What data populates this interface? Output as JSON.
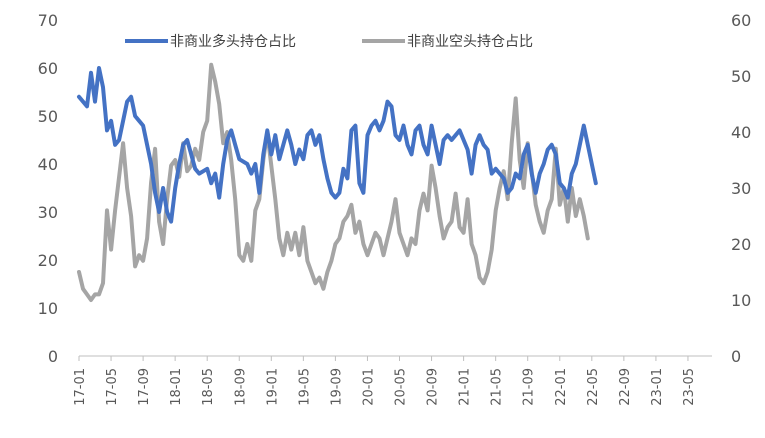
{
  "chart_data": {
    "type": "line",
    "title": "",
    "xlabel": "",
    "ylabel": "",
    "y_left": {
      "min": 0,
      "max": 70,
      "ticks": [
        "0",
        "10",
        "20",
        "30",
        "40",
        "50",
        "60",
        "70"
      ]
    },
    "y_right": {
      "min": 0,
      "max": 60,
      "ticks": [
        "0",
        "10",
        "20",
        "30",
        "40",
        "50",
        "60"
      ]
    },
    "x_ticks": [
      "17-01",
      "17-05",
      "17-09",
      "18-01",
      "18-05",
      "18-09",
      "19-01",
      "19-05",
      "19-09",
      "20-01",
      "20-05",
      "20-09",
      "21-01",
      "21-05",
      "21-09",
      "22-01",
      "22-05",
      "22-09",
      "23-01",
      "23-05"
    ],
    "x_range_months": 79,
    "grid": false,
    "legend_position": "top",
    "series": [
      {
        "name": "非商业多头持仓占比",
        "axis": "left",
        "color": "#4472C4",
        "points": [
          [
            0,
            54
          ],
          [
            1,
            52
          ],
          [
            1.5,
            59
          ],
          [
            2,
            53
          ],
          [
            2.5,
            60
          ],
          [
            3,
            56
          ],
          [
            3.5,
            47
          ],
          [
            4,
            49
          ],
          [
            4.5,
            44
          ],
          [
            5,
            45
          ],
          [
            5.5,
            49
          ],
          [
            6,
            53
          ],
          [
            6.5,
            54
          ],
          [
            7,
            50
          ],
          [
            7.5,
            49
          ],
          [
            8,
            48
          ],
          [
            8.5,
            44
          ],
          [
            9,
            40
          ],
          [
            9.5,
            34
          ],
          [
            10,
            30
          ],
          [
            10.5,
            35
          ],
          [
            11,
            30
          ],
          [
            11.5,
            28
          ],
          [
            12,
            35
          ],
          [
            12.5,
            40
          ],
          [
            13,
            44
          ],
          [
            13.5,
            45
          ],
          [
            14,
            42
          ],
          [
            14.5,
            39
          ],
          [
            15,
            38
          ],
          [
            16,
            39
          ],
          [
            16.5,
            36
          ],
          [
            17,
            38
          ],
          [
            17.5,
            33
          ],
          [
            18,
            40
          ],
          [
            18.5,
            45
          ],
          [
            19,
            47
          ],
          [
            19.5,
            44
          ],
          [
            20,
            41
          ],
          [
            21,
            40
          ],
          [
            21.5,
            38
          ],
          [
            22,
            40
          ],
          [
            22.5,
            34
          ],
          [
            23,
            42
          ],
          [
            23.5,
            47
          ],
          [
            24,
            42
          ],
          [
            24.5,
            46
          ],
          [
            25,
            41
          ],
          [
            25.5,
            44
          ],
          [
            26,
            47
          ],
          [
            26.5,
            44
          ],
          [
            27,
            40
          ],
          [
            27.5,
            43
          ],
          [
            28,
            41
          ],
          [
            28.5,
            46
          ],
          [
            29,
            47
          ],
          [
            29.5,
            44
          ],
          [
            30,
            46
          ],
          [
            30.5,
            41
          ],
          [
            31,
            37
          ],
          [
            31.5,
            34
          ],
          [
            32,
            33
          ],
          [
            32.5,
            34
          ],
          [
            33,
            39
          ],
          [
            33.5,
            37
          ],
          [
            34,
            47
          ],
          [
            34.5,
            48
          ],
          [
            35,
            36
          ],
          [
            35.5,
            34
          ],
          [
            36,
            46
          ],
          [
            36.5,
            48
          ],
          [
            37,
            49
          ],
          [
            37.5,
            47
          ],
          [
            38,
            49
          ],
          [
            38.5,
            53
          ],
          [
            39,
            52
          ],
          [
            39.5,
            46
          ],
          [
            40,
            45
          ],
          [
            40.5,
            48
          ],
          [
            41,
            44
          ],
          [
            41.5,
            42
          ],
          [
            42,
            47
          ],
          [
            42.5,
            48
          ],
          [
            43,
            44
          ],
          [
            43.5,
            42
          ],
          [
            44,
            48
          ],
          [
            44.5,
            44
          ],
          [
            45,
            40
          ],
          [
            45.5,
            45
          ],
          [
            46,
            46
          ],
          [
            46.5,
            45
          ],
          [
            47,
            46
          ],
          [
            47.5,
            47
          ],
          [
            48,
            45
          ],
          [
            48.5,
            43
          ],
          [
            49,
            38
          ],
          [
            49.5,
            44
          ],
          [
            50,
            46
          ],
          [
            50.5,
            44
          ],
          [
            51,
            43
          ],
          [
            51.5,
            38
          ],
          [
            52,
            39
          ],
          [
            52.5,
            38
          ],
          [
            53,
            37
          ],
          [
            53.5,
            34
          ],
          [
            54,
            35
          ],
          [
            54.5,
            38
          ],
          [
            55,
            37
          ],
          [
            55.5,
            42
          ],
          [
            56,
            44
          ],
          [
            56.5,
            38
          ],
          [
            57,
            34
          ],
          [
            57.5,
            38
          ],
          [
            58,
            40
          ],
          [
            58.5,
            43
          ],
          [
            59,
            44
          ],
          [
            59.5,
            42
          ],
          [
            60,
            36
          ],
          [
            60.5,
            35
          ],
          [
            61,
            33
          ],
          [
            61.5,
            38
          ],
          [
            62,
            40
          ],
          [
            62.5,
            44
          ],
          [
            63,
            48
          ],
          [
            63.5,
            44
          ],
          [
            64,
            40
          ],
          [
            64.5,
            36
          ]
        ]
      },
      {
        "name": "非商业空头持仓占比",
        "axis": "right",
        "color": "#A5A5A5",
        "points": [
          [
            0,
            15
          ],
          [
            0.5,
            12
          ],
          [
            1,
            11
          ],
          [
            1.5,
            10
          ],
          [
            2,
            11
          ],
          [
            2.5,
            11
          ],
          [
            3,
            13
          ],
          [
            3.5,
            26
          ],
          [
            4,
            19
          ],
          [
            4.5,
            26
          ],
          [
            5,
            32
          ],
          [
            5.5,
            38
          ],
          [
            6,
            30
          ],
          [
            6.5,
            25
          ],
          [
            7,
            16
          ],
          [
            7.5,
            18
          ],
          [
            8,
            17
          ],
          [
            8.5,
            21
          ],
          [
            9,
            31
          ],
          [
            9.5,
            37
          ],
          [
            10,
            24
          ],
          [
            10.5,
            20
          ],
          [
            11,
            28
          ],
          [
            11.5,
            34
          ],
          [
            12,
            35
          ],
          [
            12.5,
            32
          ],
          [
            13,
            38
          ],
          [
            13.5,
            33
          ],
          [
            14,
            34
          ],
          [
            14.5,
            37
          ],
          [
            15,
            35
          ],
          [
            15.5,
            40
          ],
          [
            16,
            42
          ],
          [
            16.5,
            52
          ],
          [
            17,
            49
          ],
          [
            17.5,
            45
          ],
          [
            18,
            38
          ],
          [
            18.5,
            40
          ],
          [
            19,
            35
          ],
          [
            19.5,
            28
          ],
          [
            20,
            18
          ],
          [
            20.5,
            17
          ],
          [
            21,
            20
          ],
          [
            21.5,
            17
          ],
          [
            22,
            26
          ],
          [
            22.5,
            28
          ],
          [
            23,
            35
          ],
          [
            23.5,
            40
          ],
          [
            24,
            34
          ],
          [
            24.5,
            28
          ],
          [
            25,
            21
          ],
          [
            25.5,
            18
          ],
          [
            26,
            22
          ],
          [
            26.5,
            19
          ],
          [
            27,
            22
          ],
          [
            27.5,
            18
          ],
          [
            28,
            23
          ],
          [
            28.5,
            17
          ],
          [
            29,
            15
          ],
          [
            29.5,
            13
          ],
          [
            30,
            14
          ],
          [
            30.5,
            12
          ],
          [
            31,
            15
          ],
          [
            31.5,
            17
          ],
          [
            32,
            20
          ],
          [
            32.5,
            21
          ],
          [
            33,
            24
          ],
          [
            33.5,
            25
          ],
          [
            34,
            27
          ],
          [
            34.5,
            22
          ],
          [
            35,
            24
          ],
          [
            35.5,
            20
          ],
          [
            36,
            18
          ],
          [
            36.5,
            20
          ],
          [
            37,
            22
          ],
          [
            37.5,
            21
          ],
          [
            38,
            18
          ],
          [
            38.5,
            21
          ],
          [
            39,
            24
          ],
          [
            39.5,
            28
          ],
          [
            40,
            22
          ],
          [
            40.5,
            20
          ],
          [
            41,
            18
          ],
          [
            41.5,
            21
          ],
          [
            42,
            20
          ],
          [
            42.5,
            26
          ],
          [
            43,
            29
          ],
          [
            43.5,
            26
          ],
          [
            44,
            34
          ],
          [
            44.5,
            30
          ],
          [
            45,
            25
          ],
          [
            45.5,
            21
          ],
          [
            46,
            23
          ],
          [
            46.5,
            24
          ],
          [
            47,
            29
          ],
          [
            47.5,
            23
          ],
          [
            48,
            22
          ],
          [
            48.5,
            28
          ],
          [
            49,
            20
          ],
          [
            49.5,
            18
          ],
          [
            50,
            14
          ],
          [
            50.5,
            13
          ],
          [
            51,
            15
          ],
          [
            51.5,
            19
          ],
          [
            52,
            26
          ],
          [
            52.5,
            30
          ],
          [
            53,
            33
          ],
          [
            53.5,
            28
          ],
          [
            54,
            38
          ],
          [
            54.5,
            46
          ],
          [
            55,
            35
          ],
          [
            55.5,
            30
          ],
          [
            56,
            38
          ],
          [
            56.5,
            33
          ],
          [
            57,
            27
          ],
          [
            57.5,
            24
          ],
          [
            58,
            22
          ],
          [
            58.5,
            26
          ],
          [
            59,
            28
          ],
          [
            59.5,
            37
          ],
          [
            60,
            27
          ],
          [
            60.5,
            30
          ],
          [
            61,
            24
          ],
          [
            61.5,
            30
          ],
          [
            62,
            25
          ],
          [
            62.5,
            28
          ],
          [
            63,
            25
          ],
          [
            63.5,
            21
          ]
        ]
      }
    ]
  }
}
